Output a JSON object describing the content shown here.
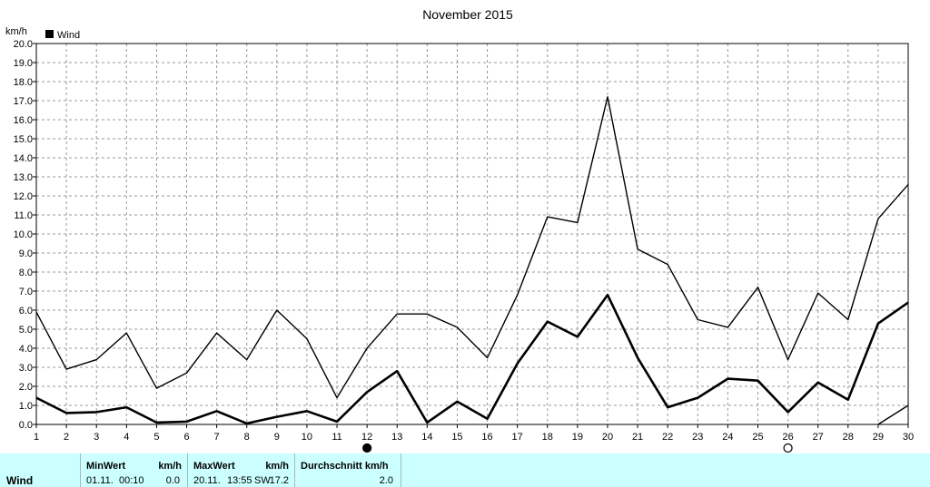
{
  "chart_data": {
    "type": "line",
    "title": "November 2015",
    "ylabel": "km/h",
    "legend": "Wind",
    "legend_position": "top-left",
    "grid": true,
    "ylim": [
      0,
      20
    ],
    "yticks": [
      "0.0",
      "1.0",
      "2.0",
      "3.0",
      "4.0",
      "5.0",
      "6.0",
      "7.0",
      "8.0",
      "9.0",
      "10.0",
      "11.0",
      "12.0",
      "13.0",
      "14.0",
      "15.0",
      "16.0",
      "17.0",
      "18.0",
      "19.0",
      "20.0"
    ],
    "x": [
      1,
      2,
      3,
      4,
      5,
      6,
      7,
      8,
      9,
      10,
      11,
      12,
      13,
      14,
      15,
      16,
      17,
      18,
      19,
      20,
      21,
      22,
      23,
      24,
      25,
      26,
      27,
      28,
      29,
      30
    ],
    "series": [
      {
        "values": [
          5.9,
          2.9,
          3.4,
          4.8,
          1.9,
          2.7,
          4.8,
          3.4,
          6.0,
          4.5,
          1.4,
          4.0,
          5.8,
          5.8,
          5.1,
          3.5,
          6.8,
          10.9,
          10.6,
          17.2,
          9.2,
          8.4,
          5.5,
          5.1,
          7.2,
          3.4,
          6.9,
          5.5,
          10.8,
          12.6
        ],
        "style": "thin"
      },
      {
        "values": [
          1.4,
          0.6,
          0.65,
          0.9,
          0.1,
          0.15,
          0.7,
          0.05,
          0.4,
          0.7,
          0.15,
          1.7,
          2.8,
          0.1,
          1.2,
          0.3,
          3.2,
          5.4,
          4.6,
          6.8,
          3.5,
          0.9,
          1.4,
          2.4,
          2.3,
          0.65,
          2.2,
          1.3,
          5.3,
          6.4
        ],
        "style": "thick"
      },
      {
        "values": [
          null,
          null,
          null,
          null,
          null,
          null,
          null,
          null,
          null,
          null,
          null,
          null,
          null,
          null,
          null,
          null,
          null,
          null,
          null,
          null,
          null,
          null,
          null,
          null,
          null,
          null,
          null,
          null,
          0.0,
          1.0
        ],
        "style": "thin"
      }
    ],
    "moon_phases": [
      {
        "x": 12,
        "phase": "new-moon"
      },
      {
        "x": 26,
        "phase": "full-moon"
      }
    ]
  },
  "summary": {
    "row_label": "Wind",
    "min": {
      "header": "MinWert",
      "unit": "km/h",
      "date": "01.11.",
      "time": "00:10",
      "value": "0.0"
    },
    "max": {
      "header": "MaxWert",
      "unit": "km/h",
      "date": "20.11.",
      "time": "13:55",
      "direction": "SW",
      "value": "17.2"
    },
    "avg": {
      "header": "Durchschnitt km/h",
      "value": "2.0"
    }
  }
}
